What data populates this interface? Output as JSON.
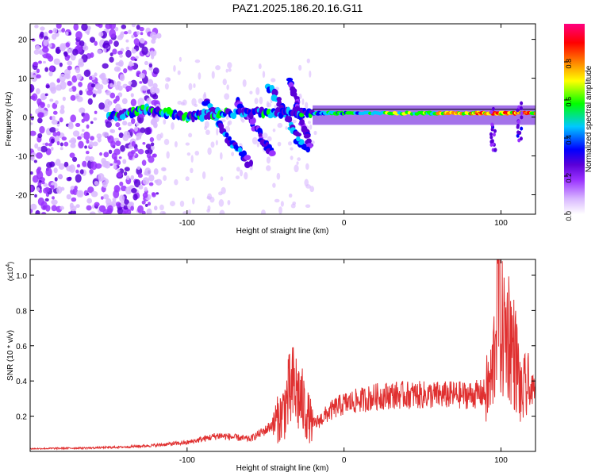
{
  "page_title": "PAZ1.2025.186.20.16.G11",
  "chart_data": [
    {
      "type": "heatmap",
      "title": "PAZ1.2025.186.20.16.G11",
      "xlabel": "Height of straight line (km)",
      "ylabel": "Frequency (Hz)",
      "xlim": [
        -200,
        122
      ],
      "ylim": [
        -25,
        24
      ],
      "xticks": [
        -100,
        0,
        100
      ],
      "yticks": [
        -20,
        -10,
        0,
        10,
        20
      ],
      "grid": false,
      "colorbar": {
        "label": "Normalized spectral amplitude",
        "range": [
          0,
          1
        ],
        "ticks": [
          "0.0",
          "0.2",
          "0.4",
          "0.6",
          "0.8"
        ],
        "colors": [
          "#ffffff",
          "#d9b8ff",
          "#9a32ff",
          "#5a00d8",
          "#0000ff",
          "#00c8ff",
          "#00ff00",
          "#ffff00",
          "#ff8000",
          "#ff0000",
          "#ff0080"
        ]
      },
      "features": [
        {
          "name": "noise region",
          "x_range": [
            -200,
            -118
          ],
          "y_range": [
            -25,
            24
          ],
          "amplitude": 0.2
        },
        {
          "name": "main tone track",
          "points": [
            [
              -150,
              0
            ],
            [
              -125,
              2
            ],
            [
              -100,
              0
            ],
            [
              -80,
              1
            ],
            [
              -50,
              1
            ],
            [
              -20,
              1
            ],
            [
              0,
              1
            ],
            [
              50,
              1
            ],
            [
              80,
              1
            ],
            [
              100,
              1
            ],
            [
              122,
              1
            ]
          ],
          "amplitude_range": [
            0.3,
            0.95
          ]
        },
        {
          "name": "descending branch 1",
          "points": [
            [
              -88,
              4
            ],
            [
              -82,
              0
            ],
            [
              -75,
              -5
            ],
            [
              -68,
              -8
            ],
            [
              -60,
              -12
            ]
          ],
          "amplitude": 0.4
        },
        {
          "name": "descending branch 2",
          "points": [
            [
              -68,
              4
            ],
            [
              -60,
              0
            ],
            [
              -52,
              -6
            ],
            [
              -46,
              -9
            ]
          ],
          "amplitude": 0.35
        },
        {
          "name": "descending branch 3",
          "points": [
            [
              -48,
              8
            ],
            [
              -40,
              3
            ],
            [
              -32,
              -4
            ],
            [
              -25,
              -8
            ]
          ],
          "amplitude": 0.45
        },
        {
          "name": "descending branch 4",
          "points": [
            [
              -34,
              9
            ],
            [
              -30,
              4
            ],
            [
              -26,
              -2
            ],
            [
              -22,
              -8
            ]
          ],
          "amplitude": 0.35
        }
      ]
    },
    {
      "type": "line",
      "xlabel": "Height of straight line (km)",
      "ylabel": "SNR (10 * v/v)",
      "y_multiplier": "(x10",
      "y_multiplier_exp": "4",
      "xlim": [
        -200,
        122
      ],
      "ylim": [
        0,
        10900
      ],
      "xticks": [
        -100,
        0,
        100
      ],
      "yticks": [
        0.2,
        0.4,
        0.6,
        0.8,
        1.0
      ],
      "grid": false,
      "color": "#e03030",
      "series": [
        {
          "x": [
            -200,
            -180,
            -160,
            -140,
            -120,
            -100,
            -90,
            -80,
            -70,
            -60,
            -50,
            -40,
            -35,
            -32,
            -28,
            -24,
            -20,
            -15,
            -10,
            -5,
            0,
            5,
            10,
            20,
            30,
            40,
            50,
            60,
            70,
            80,
            90,
            94,
            96,
            98,
            99,
            100,
            102,
            105,
            110,
            113,
            115,
            118,
            122
          ],
          "y": [
            150,
            180,
            200,
            250,
            350,
            500,
            700,
            900,
            800,
            700,
            1200,
            2000,
            3200,
            3600,
            3000,
            2200,
            1500,
            1800,
            2200,
            2500,
            2700,
            2800,
            2900,
            3100,
            3200,
            3200,
            3200,
            3200,
            3200,
            3200,
            3300,
            4000,
            6000,
            10500,
            9000,
            6800,
            6800,
            6800,
            5000,
            3000,
            3500,
            3500,
            3400
          ]
        }
      ]
    }
  ]
}
